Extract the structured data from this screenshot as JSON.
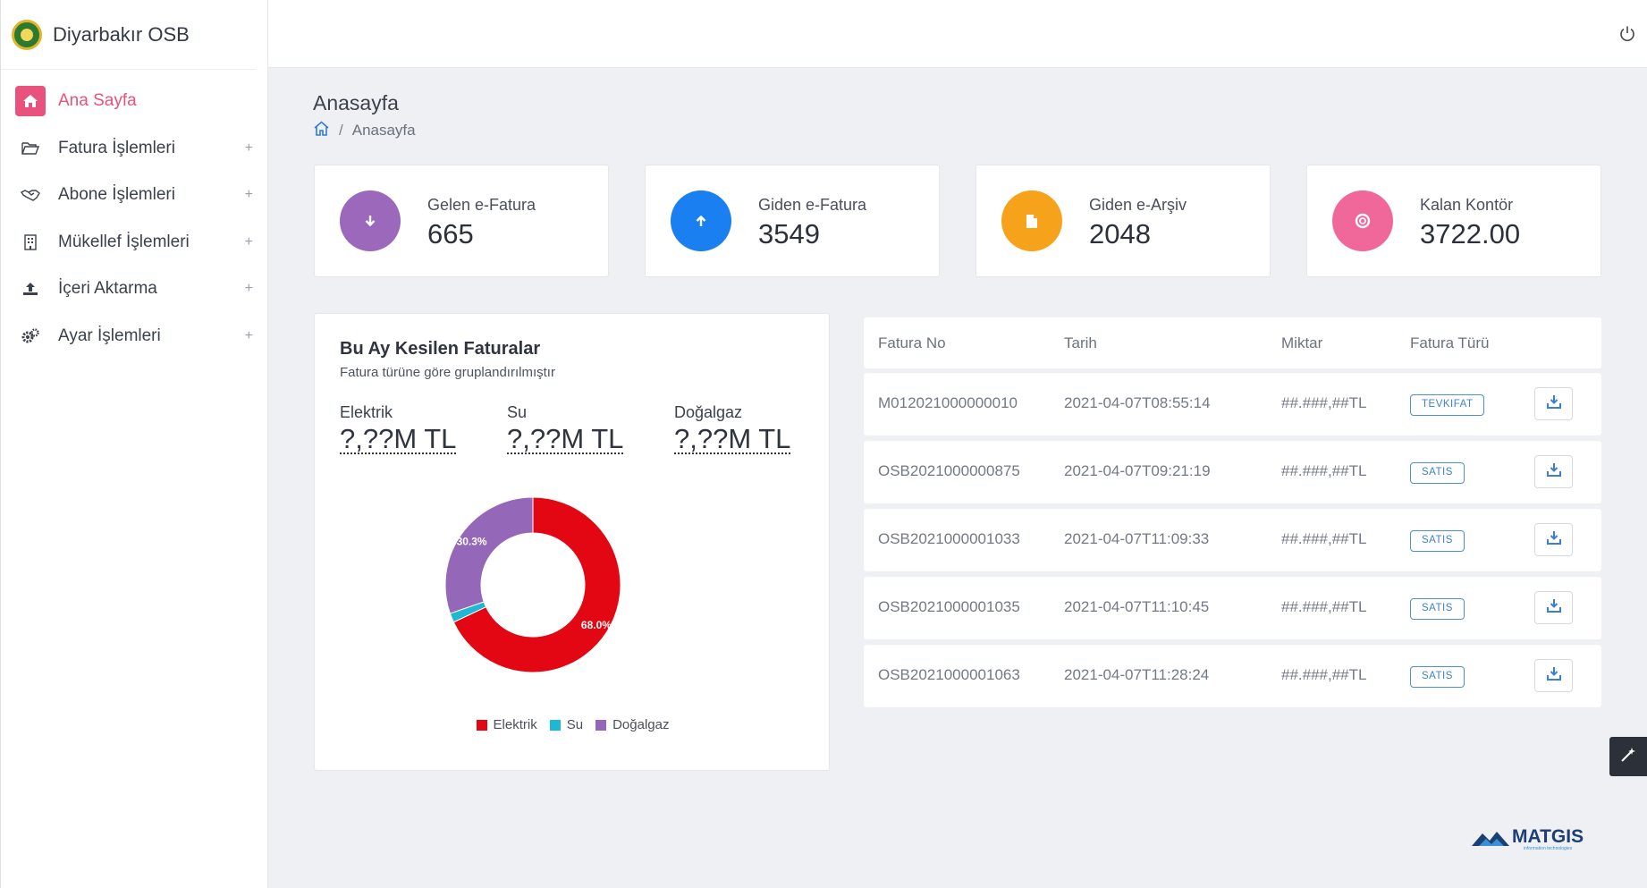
{
  "brand": {
    "title": "Diyarbakır OSB"
  },
  "sidebar": {
    "items": [
      {
        "label": "Ana Sayfa",
        "icon": "home-icon",
        "active": true
      },
      {
        "label": "Fatura İşlemleri",
        "icon": "folder-open-icon",
        "expand": "+"
      },
      {
        "label": "Abone İşlemleri",
        "icon": "handshake-icon",
        "expand": "+"
      },
      {
        "label": "Mükellef İşlemleri",
        "icon": "building-icon",
        "expand": "+"
      },
      {
        "label": "İçeri Aktarma",
        "icon": "upload-icon",
        "expand": "+"
      },
      {
        "label": "Ayar İşlemleri",
        "icon": "cogs-icon",
        "expand": "+"
      }
    ]
  },
  "header": {
    "title": "Anasayfa",
    "breadcrumb_sep": "/",
    "breadcrumb_current": "Anasayfa"
  },
  "stats": [
    {
      "label": "Gelen e-Fatura",
      "value": "665",
      "color": "#9b68bb",
      "icon": "arrow-down-icon"
    },
    {
      "label": "Giden e-Fatura",
      "value": "3549",
      "color": "#1a7ff0",
      "icon": "arrow-up-icon"
    },
    {
      "label": "Giden e-Arşiv",
      "value": "2048",
      "color": "#f7a21b",
      "icon": "file-icon"
    },
    {
      "label": "Kalan Kontör",
      "value": "3722.00",
      "color": "#f0679a",
      "icon": "lifebuoy-icon"
    }
  ],
  "chart_panel": {
    "title": "Bu Ay Kesilen Faturalar",
    "subtitle": "Fatura türüne göre gruplandırılmıştır",
    "summary": [
      {
        "name": "Elektrik",
        "value": "?,??M TL"
      },
      {
        "name": "Su",
        "value": "?,??M TL"
      },
      {
        "name": "Doğalgaz",
        "value": "?,??M TL"
      }
    ]
  },
  "chart_data": {
    "type": "pie",
    "donut": true,
    "categories": [
      "Elektrik",
      "Su",
      "Doğalgaz"
    ],
    "values": [
      68.0,
      1.7,
      30.3
    ],
    "labels": [
      "68.0%",
      "",
      "30.3%"
    ],
    "colors": [
      "#e30613",
      "#1fb8d4",
      "#9567b8"
    ],
    "legend": "bottom"
  },
  "table": {
    "columns": [
      "Fatura No",
      "Tarih",
      "Miktar",
      "Fatura Türü"
    ],
    "rows": [
      {
        "no": "M012021000000010",
        "date": "2021-04-07T08:55:14",
        "amount": "##.###,##TL",
        "type": "TEVKIFAT"
      },
      {
        "no": "OSB2021000000875",
        "date": "2021-04-07T09:21:19",
        "amount": "##.###,##TL",
        "type": "SATIS"
      },
      {
        "no": "OSB2021000001033",
        "date": "2021-04-07T11:09:33",
        "amount": "##.###,##TL",
        "type": "SATIS"
      },
      {
        "no": "OSB2021000001035",
        "date": "2021-04-07T11:10:45",
        "amount": "##.###,##TL",
        "type": "SATIS"
      },
      {
        "no": "OSB2021000001063",
        "date": "2021-04-07T11:28:24",
        "amount": "##.###,##TL",
        "type": "SATIS"
      }
    ]
  },
  "footer": {
    "logo_text": "MATGIS",
    "logo_tagline": "information technologies"
  }
}
